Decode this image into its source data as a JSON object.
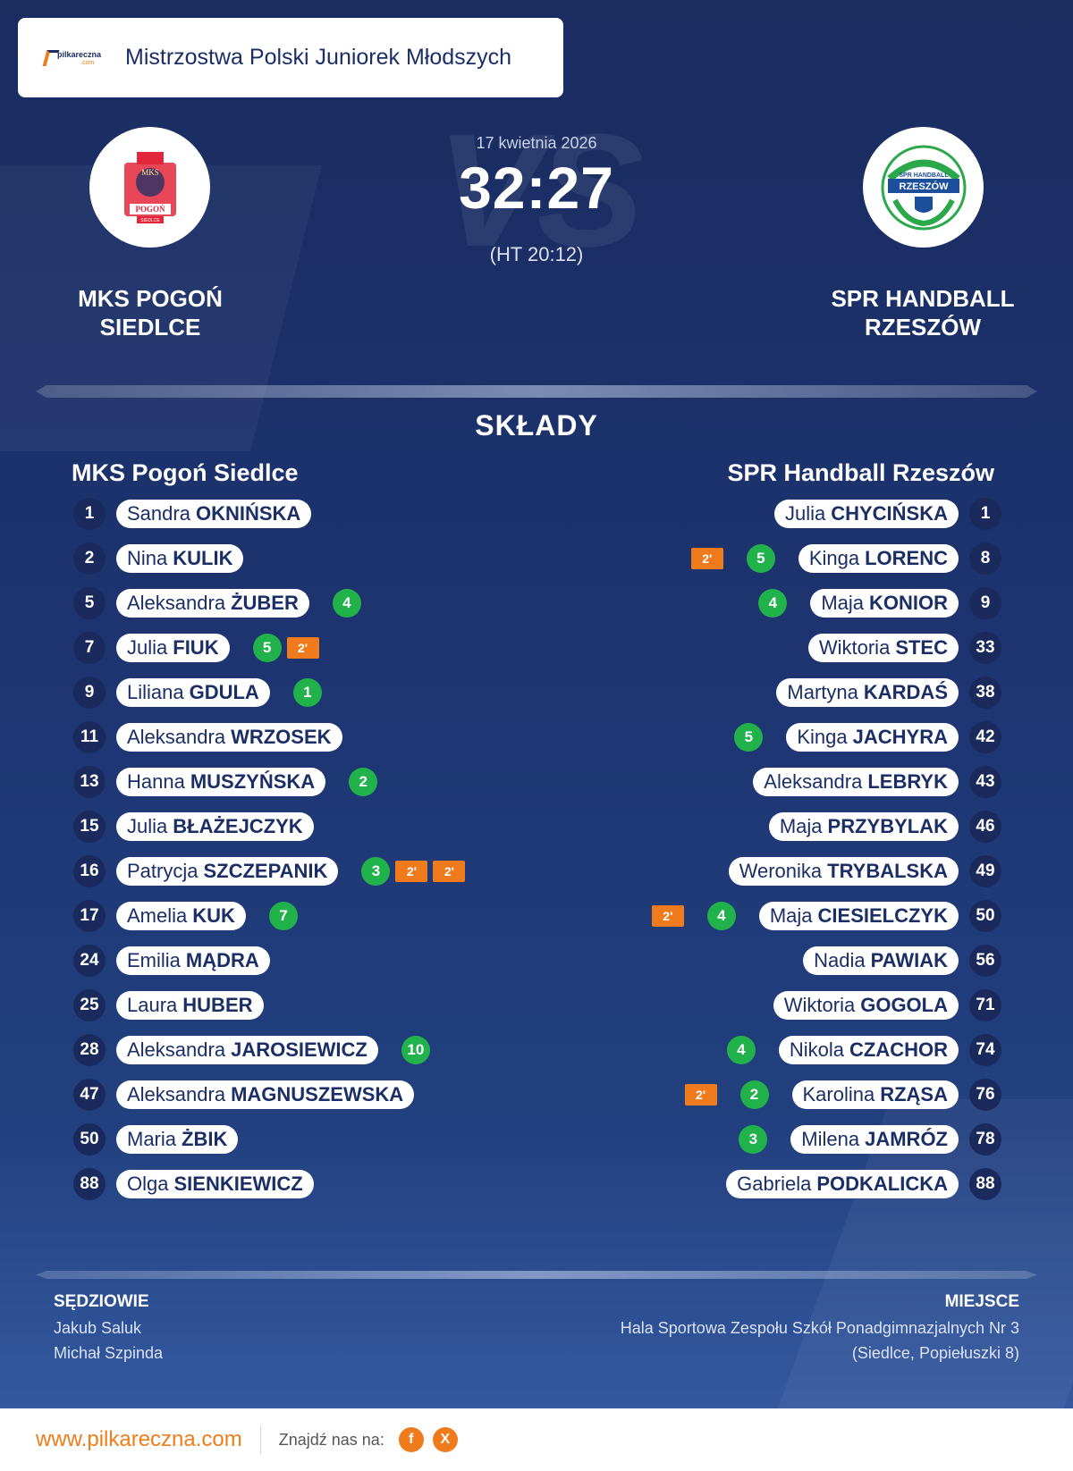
{
  "header": {
    "brand_text": "pilkareczna",
    "brand_suffix": ".com",
    "competition": "Mistrzostwa Polski Juniorek Młodszych"
  },
  "match": {
    "date": "17 kwietnia 2026",
    "score": "32:27",
    "halftime": "(HT 20:12)",
    "vs_watermark": "VS"
  },
  "home": {
    "name_line1": "MKS POGOŃ",
    "name_line2": "SIEDLCE",
    "full_name": "MKS Pogoń Siedlce",
    "logo_text": "MKS",
    "logo_sub": "POGOŃ",
    "logo_city": "SIEDLCE"
  },
  "away": {
    "name_line1": "SPR HANDBALL",
    "name_line2": "RZESZÓW",
    "full_name": "SPR Handball Rzeszów",
    "logo_text": "SPR HANDBALL",
    "logo_sub": "RZESZÓW"
  },
  "lineups_title": "SKŁADY",
  "home_players": [
    {
      "number": "1",
      "first": "Sandra",
      "last": "OKNIŃSKA",
      "goals": "",
      "penalties": []
    },
    {
      "number": "2",
      "first": "Nina",
      "last": "KULIK",
      "goals": "",
      "penalties": []
    },
    {
      "number": "5",
      "first": "Aleksandra",
      "last": "ŻUBER",
      "goals": "4",
      "penalties": []
    },
    {
      "number": "7",
      "first": "Julia",
      "last": "FIUK",
      "goals": "5",
      "penalties": [
        "2'"
      ]
    },
    {
      "number": "9",
      "first": "Liliana",
      "last": "GDULA",
      "goals": "1",
      "penalties": []
    },
    {
      "number": "11",
      "first": "Aleksandra",
      "last": "WRZOSEK",
      "goals": "",
      "penalties": []
    },
    {
      "number": "13",
      "first": "Hanna",
      "last": "MUSZYŃSKA",
      "goals": "2",
      "penalties": []
    },
    {
      "number": "15",
      "first": "Julia",
      "last": "BŁAŻEJCZYK",
      "goals": "",
      "penalties": []
    },
    {
      "number": "16",
      "first": "Patrycja",
      "last": "SZCZEPANIK",
      "goals": "3",
      "penalties": [
        "2'",
        "2'"
      ]
    },
    {
      "number": "17",
      "first": "Amelia",
      "last": "KUK",
      "goals": "7",
      "penalties": []
    },
    {
      "number": "24",
      "first": "Emilia",
      "last": "MĄDRA",
      "goals": "",
      "penalties": []
    },
    {
      "number": "25",
      "first": "Laura",
      "last": "HUBER",
      "goals": "",
      "penalties": []
    },
    {
      "number": "28",
      "first": "Aleksandra",
      "last": "JAROSIEWICZ",
      "goals": "10",
      "penalties": []
    },
    {
      "number": "47",
      "first": "Aleksandra",
      "last": "MAGNUSZEWSKA",
      "goals": "",
      "penalties": []
    },
    {
      "number": "50",
      "first": "Maria",
      "last": "ŻBIK",
      "goals": "",
      "penalties": []
    },
    {
      "number": "88",
      "first": "Olga",
      "last": "SIENKIEWICZ",
      "goals": "",
      "penalties": []
    }
  ],
  "away_players": [
    {
      "number": "1",
      "first": "Julia",
      "last": "CHYCIŃSKA",
      "goals": "",
      "penalties": []
    },
    {
      "number": "8",
      "first": "Kinga",
      "last": "LORENC",
      "goals": "5",
      "penalties": [
        "2'"
      ]
    },
    {
      "number": "9",
      "first": "Maja",
      "last": "KONIOR",
      "goals": "4",
      "penalties": []
    },
    {
      "number": "33",
      "first": "Wiktoria",
      "last": "STEC",
      "goals": "",
      "penalties": []
    },
    {
      "number": "38",
      "first": "Martyna",
      "last": "KARDAŚ",
      "goals": "",
      "penalties": []
    },
    {
      "number": "42",
      "first": "Kinga",
      "last": "JACHYRA",
      "goals": "5",
      "penalties": []
    },
    {
      "number": "43",
      "first": "Aleksandra",
      "last": "LEBRYK",
      "goals": "",
      "penalties": []
    },
    {
      "number": "46",
      "first": "Maja",
      "last": "PRZYBYLAK",
      "goals": "",
      "penalties": []
    },
    {
      "number": "49",
      "first": "Weronika",
      "last": "TRYBALSKA",
      "goals": "",
      "penalties": []
    },
    {
      "number": "50",
      "first": "Maja",
      "last": "CIESIELCZYK",
      "goals": "4",
      "penalties": [
        "2'"
      ]
    },
    {
      "number": "56",
      "first": "Nadia",
      "last": "PAWIAK",
      "goals": "",
      "penalties": []
    },
    {
      "number": "71",
      "first": "Wiktoria",
      "last": "GOGOLA",
      "goals": "",
      "penalties": []
    },
    {
      "number": "74",
      "first": "Nikola",
      "last": "CZACHOR",
      "goals": "4",
      "penalties": []
    },
    {
      "number": "76",
      "first": "Karolina",
      "last": "RZĄSA",
      "goals": "2",
      "penalties": [
        "2'"
      ]
    },
    {
      "number": "78",
      "first": "Milena",
      "last": "JAMRÓZ",
      "goals": "3",
      "penalties": []
    },
    {
      "number": "88",
      "first": "Gabriela",
      "last": "PODKALICKA",
      "goals": "",
      "penalties": []
    }
  ],
  "referees": {
    "title": "SĘDZIOWIE",
    "names": [
      "Jakub Saluk",
      "Michał Szpinda"
    ]
  },
  "venue": {
    "title": "MIEJSCE",
    "line1": "Hala Sportowa Zespołu Szkół Ponadgimnazjalnych Nr 3",
    "line2": "(Siedlce, Popiełuszki 8)"
  },
  "footer": {
    "site": "www.pilkareczna.com",
    "find_us": "Znajdź nas na:",
    "social_facebook": "f",
    "social_x": "X"
  },
  "colors": {
    "navy": "#1b2f66",
    "goal_green": "#22b24c",
    "penalty_orange": "#f07b1c",
    "brand_orange": "#ef7d1a"
  }
}
